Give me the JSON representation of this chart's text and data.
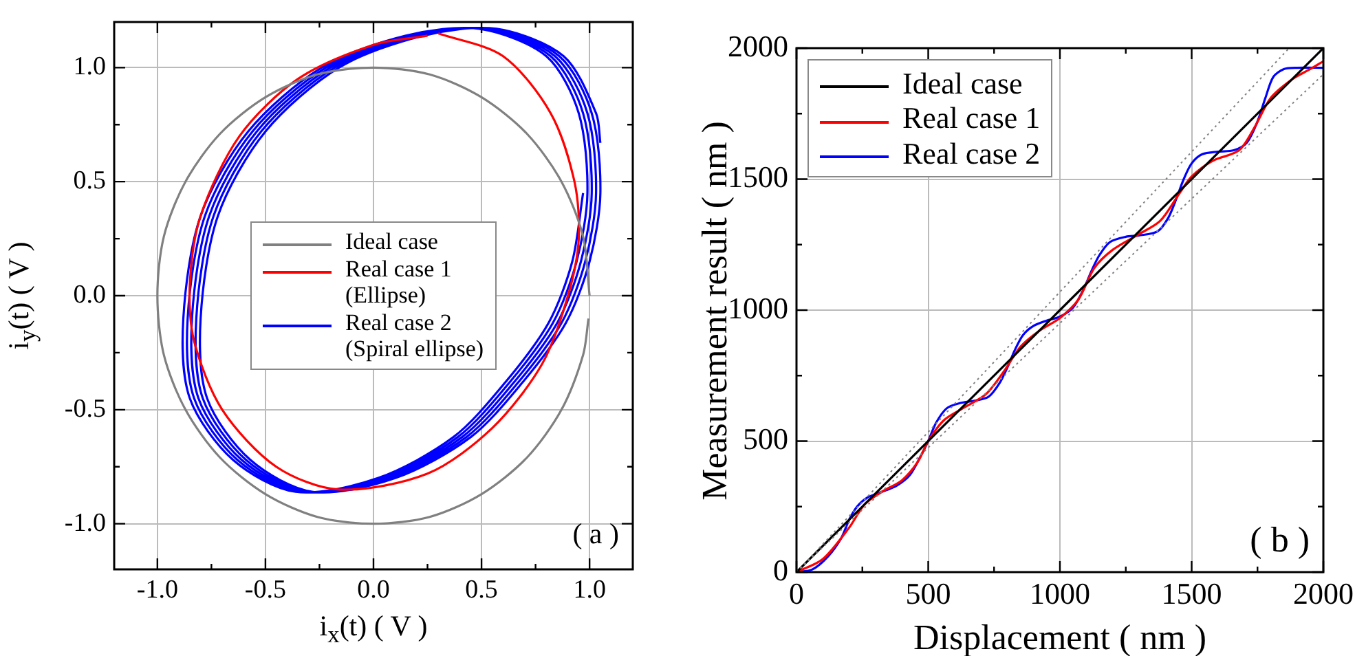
{
  "chart_data": [
    {
      "type": "line",
      "xlabel": "i$_{x}$(t) ( V )",
      "ylabel": "i$_{y}$(t) ( V )",
      "annotations": [
        "( a )"
      ],
      "legend": "center",
      "grid": true,
      "marker": "none",
      "xlim": [
        -1.2,
        1.2
      ],
      "ylim": [
        -1.2,
        1.2
      ],
      "xticks": [
        {
          "value": -1,
          "label": "-1.0"
        },
        {
          "value": -0.75,
          "label": null
        },
        {
          "value": -0.5,
          "label": "-0.5"
        },
        {
          "value": -0.25,
          "label": null
        },
        {
          "value": 0,
          "label": "0.0"
        },
        {
          "value": 0.25,
          "label": null
        },
        {
          "value": 0.5,
          "label": "0.5"
        },
        {
          "value": 0.75,
          "label": null
        },
        {
          "value": 1,
          "label": "1.0"
        }
      ],
      "yticks": [
        {
          "value": -1,
          "label": "-1.0"
        },
        {
          "value": -0.75,
          "label": null
        },
        {
          "value": -0.5,
          "label": "-0.5"
        },
        {
          "value": -0.25,
          "label": null
        },
        {
          "value": 0,
          "label": "0.0"
        },
        {
          "value": 0.25,
          "label": null
        },
        {
          "value": 0.5,
          "label": "0.5"
        },
        {
          "value": 0.75,
          "label": null
        },
        {
          "value": 1,
          "label": "1.0"
        }
      ],
      "series": [
        {
          "name": "Ideal case",
          "color": "#808080",
          "x": [
            1,
            0.97,
            0.87,
            0.71,
            0.5,
            0.26,
            0,
            -0.26,
            -0.5,
            -0.71,
            -0.87,
            -0.97,
            -1,
            -0.97,
            -0.87,
            -0.71,
            -0.5,
            -0.26,
            0,
            0.26,
            0.5,
            0.71,
            0.87,
            0.97,
            0.995
          ],
          "values": [
            0,
            0.26,
            0.5,
            0.71,
            0.87,
            0.97,
            1,
            0.97,
            0.87,
            0.71,
            0.5,
            0.26,
            0,
            -0.26,
            -0.5,
            -0.71,
            -0.87,
            -0.97,
            -1,
            -0.97,
            -0.87,
            -0.71,
            -0.5,
            -0.26,
            -0.1
          ]
        },
        {
          "name": "Real case 1\n(Ellipse)",
          "color": "#ff0000",
          "x": [
            0.3,
            0.6,
            0.82,
            0.93,
            0.95,
            0.9,
            0.78,
            0.55,
            0.25,
            -0.16,
            -0.45,
            -0.7,
            -0.83,
            -0.85,
            -0.8,
            -0.62,
            -0.35,
            0,
            0.25
          ],
          "values": [
            1.15,
            1.05,
            0.8,
            0.5,
            0.25,
            0,
            -0.3,
            -0.58,
            -0.78,
            -0.85,
            -0.75,
            -0.5,
            -0.2,
            0.05,
            0.35,
            0.7,
            0.95,
            1.1,
            1.14
          ]
        },
        {
          "name": "Real case 2\n(Spiral ellipse)",
          "color": "#0000ff",
          "x": [
            0.97,
            0.92,
            0.81,
            0.61,
            0.37,
            0.02,
            -0.36,
            -0.65,
            -0.85,
            -0.88,
            -0.8,
            -0.58,
            -0.24,
            0.15,
            0.49,
            0.8,
            0.95,
            0.99,
            0.94,
            0.83,
            0.63,
            0.39,
            0.04,
            -0.34,
            -0.63,
            -0.83,
            -0.86,
            -0.78,
            -0.56,
            -0.22,
            0.17,
            0.51,
            0.82,
            0.97,
            1.01,
            0.96,
            0.85,
            0.65,
            0.41,
            0.06,
            -0.32,
            -0.61,
            -0.81,
            -0.84,
            -0.76,
            -0.54,
            -0.2,
            0.19,
            0.53,
            0.84,
            0.99,
            1.03,
            0.98,
            0.87,
            0.67,
            0.43,
            0.08,
            -0.3,
            -0.59,
            -0.79,
            -0.82,
            -0.74,
            -0.52,
            -0.18,
            0.21,
            0.55,
            0.86,
            1.01,
            1.05,
            1,
            0.89,
            0.69,
            0.45,
            0.1,
            -0.28,
            -0.57,
            -0.77,
            -0.8,
            -0.72,
            -0.5,
            -0.16,
            0.23,
            0.57,
            0.88,
            1.03,
            1.05
          ],
          "values": [
            0.45,
            0.15,
            -0.12,
            -0.38,
            -0.62,
            -0.8,
            -0.86,
            -0.72,
            -0.45,
            -0.1,
            0.35,
            0.72,
            1,
            1.14,
            1.17,
            1.05,
            0.8,
            0.45,
            0.15,
            -0.12,
            -0.38,
            -0.62,
            -0.8,
            -0.86,
            -0.72,
            -0.45,
            -0.1,
            0.35,
            0.72,
            1,
            1.14,
            1.17,
            1.05,
            0.8,
            0.45,
            0.15,
            -0.12,
            -0.38,
            -0.62,
            -0.8,
            -0.86,
            -0.72,
            -0.45,
            -0.1,
            0.35,
            0.72,
            1,
            1.14,
            1.17,
            1.05,
            0.8,
            0.45,
            0.15,
            -0.12,
            -0.38,
            -0.62,
            -0.8,
            -0.86,
            -0.72,
            -0.45,
            -0.1,
            0.35,
            0.72,
            1,
            1.14,
            1.17,
            1.05,
            0.8,
            0.45,
            0.15,
            -0.12,
            -0.38,
            -0.62,
            -0.8,
            -0.86,
            -0.72,
            -0.45,
            -0.1,
            0.35,
            0.72,
            1,
            1.14,
            1.17,
            1.05,
            0.8,
            0.67
          ]
        }
      ]
    },
    {
      "type": "line",
      "xlabel": "Displacement ( nm )",
      "ylabel": "Measurement result ( nm )",
      "annotations": [
        "( b )"
      ],
      "legend": "top left",
      "grid": true,
      "marker": "none",
      "xlim": [
        0,
        2000
      ],
      "ylim": [
        0,
        2000
      ],
      "xticks": [
        0,
        {
          "value": 250,
          "label": null
        },
        500,
        {
          "value": 750,
          "label": null
        },
        1000,
        {
          "value": 1250,
          "label": null
        },
        1500,
        {
          "value": 1750,
          "label": null
        },
        2000
      ],
      "yticks": [
        0,
        {
          "value": 250,
          "label": null
        },
        500,
        {
          "value": 750,
          "label": null
        },
        1000,
        {
          "value": 1250,
          "label": null
        },
        1500,
        {
          "value": 1750,
          "label": null
        },
        2000
      ],
      "series": [
        {
          "color": "#808080",
          "line_style": "dotted",
          "x": [
            0,
            1870
          ],
          "values": [
            0,
            2000
          ]
        },
        {
          "color": "#808080",
          "line_style": "dotted",
          "x": [
            0,
            2000
          ],
          "values": [
            0,
            1900
          ]
        },
        {
          "name": "Ideal case",
          "color": "#000000",
          "x": [
            0,
            2000
          ],
          "values": [
            0,
            2000
          ]
        },
        {
          "name": "Real case 1",
          "color": "#ff0000",
          "x": [
            0,
            100,
            200,
            260,
            330,
            400,
            460,
            500,
            560,
            640,
            720,
            790,
            850,
            920,
            1000,
            1070,
            1130,
            1200,
            1300,
            1380,
            1450,
            1500,
            1580,
            1680,
            1740,
            1800,
            1880,
            1950,
            2000
          ],
          "values": [
            0,
            50,
            170,
            260,
            310,
            350,
            420,
            500,
            580,
            630,
            680,
            770,
            860,
            920,
            970,
            1040,
            1160,
            1230,
            1290,
            1340,
            1440,
            1510,
            1570,
            1610,
            1700,
            1810,
            1880,
            1920,
            1950
          ]
        },
        {
          "name": "Real case 2",
          "color": "#0000ff",
          "x": [
            0,
            60,
            120,
            170,
            200,
            230,
            270,
            320,
            380,
            430,
            470,
            500,
            530,
            570,
            620,
            680,
            730,
            770,
            800,
            830,
            860,
            900,
            950,
            1000,
            1050,
            1090,
            1120,
            1150,
            1190,
            1250,
            1300,
            1370,
            1410,
            1440,
            1470,
            1500,
            1540,
            1600,
            1660,
            1710,
            1750,
            1780,
            1810,
            1850,
            1900,
            2000
          ],
          "values": [
            0,
            10,
            60,
            130,
            200,
            250,
            285,
            305,
            330,
            370,
            440,
            500,
            570,
            625,
            645,
            655,
            670,
            720,
            780,
            850,
            905,
            940,
            960,
            975,
            1010,
            1080,
            1150,
            1210,
            1260,
            1280,
            1285,
            1300,
            1350,
            1420,
            1500,
            1560,
            1595,
            1605,
            1610,
            1640,
            1720,
            1810,
            1890,
            1920,
            1925,
            1925
          ]
        }
      ]
    }
  ]
}
